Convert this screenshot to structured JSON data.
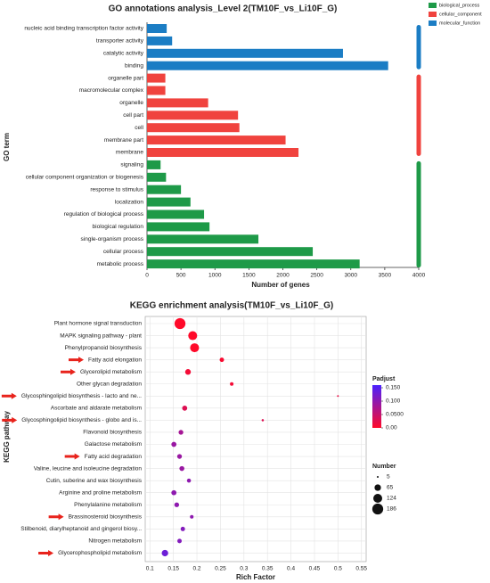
{
  "chart_data": [
    {
      "type": "barh",
      "title": "GO annotations analysis_Level 2(TM10F_vs_Li10F_G)",
      "xlabel": "Number of genes",
      "ylabel": "GO term",
      "xlim": [
        0,
        4000
      ],
      "xticks": [
        0,
        500,
        1000,
        1500,
        2000,
        2500,
        3000,
        3500,
        4000
      ],
      "series": [
        {
          "name": "biological_process",
          "color": "#1e9a48",
          "categories": [
            "signaling",
            "cellular component organization or biogenesis",
            "response to stimulus",
            "localization",
            "regulation of biological process",
            "biological regulation",
            "single-organism process",
            "cellular process",
            "metabolic process"
          ],
          "values": [
            200,
            280,
            500,
            640,
            840,
            920,
            1640,
            2440,
            3130
          ]
        },
        {
          "name": "cellular_component",
          "color": "#f0433e",
          "categories": [
            "organelle part",
            "macromolecular complex",
            "organelle",
            "cell part",
            "cell",
            "membrane part",
            "membrane"
          ],
          "values": [
            270,
            270,
            900,
            1340,
            1360,
            2040,
            2230
          ]
        },
        {
          "name": "molecular_function",
          "color": "#1b7dc4",
          "categories": [
            "nucleic acid binding transcription factor activity",
            "transporter activity",
            "catalytic activity",
            "binding"
          ],
          "values": [
            290,
            370,
            2885,
            3550
          ]
        }
      ]
    },
    {
      "type": "bubble",
      "title": "KEGG enrichment analysis(TM10F_vs_Li10F_G)",
      "xlabel": "Rich Factor",
      "ylabel": "KEGG pathway",
      "xlim": [
        0.09,
        0.56
      ],
      "xticks": [
        0.1,
        0.15,
        0.2,
        0.25,
        0.3,
        0.35,
        0.4,
        0.45,
        0.5,
        0.55
      ],
      "grid": true,
      "categories": [
        "Plant hormone signal transduction",
        "MAPK signaling pathway - plant",
        "Phenylpropanoid biosynthesis",
        "Fatty acid elongation",
        "Glycerolipid metabolism",
        "Other glycan degradation",
        "Glycosphingolipid biosynthesis - lacto and ne...",
        "Ascorbate and aldarate metabolism",
        "Glycosphingolipid biosynthesis - globo and is...",
        "Flavonoid biosynthesis",
        "Galactose metabolism",
        "Fatty acid degradation",
        "Valine, leucine and isoleucine degradation",
        "Cutin, suberine and wax biosynthesis",
        "Arginine and proline metabolism",
        "Phenylalanine metabolism",
        "Brassinosteroid biosynthesis",
        "Stilbenoid, diarylheptanoid and gingerol biosy...",
        "Nitrogen metabolism",
        "Glycerophospholipid metabolism"
      ],
      "marked": [
        false,
        false,
        false,
        true,
        true,
        false,
        true,
        false,
        true,
        false,
        false,
        true,
        false,
        false,
        false,
        false,
        true,
        false,
        false,
        true
      ],
      "x": [
        0.164,
        0.191,
        0.195,
        0.253,
        0.181,
        0.274,
        0.5,
        0.174,
        0.34,
        0.166,
        0.151,
        0.163,
        0.168,
        0.183,
        0.151,
        0.157,
        0.189,
        0.17,
        0.163,
        0.132
      ],
      "sizes": [
        186,
        124,
        124,
        30,
        50,
        20,
        5,
        40,
        8,
        35,
        40,
        35,
        38,
        25,
        40,
        35,
        20,
        30,
        30,
        65
      ],
      "padj": [
        0.0,
        0.0,
        0.0,
        0.005,
        0.01,
        0.01,
        0.02,
        0.03,
        0.03,
        0.08,
        0.09,
        0.09,
        0.09,
        0.1,
        0.1,
        0.1,
        0.1,
        0.11,
        0.11,
        0.13
      ],
      "color_title": "Padjust",
      "color_lim": [
        0,
        0.16
      ],
      "color_low": "#ff0a2a",
      "color_high": "#4a22ff",
      "color_ticks": [
        {
          "value": 0.15,
          "label": "0.150"
        },
        {
          "value": 0.1,
          "label": "0.100"
        },
        {
          "value": 0.05,
          "label": "0.0500"
        },
        {
          "value": 0,
          "label": "0.00"
        }
      ],
      "size_title": "Number",
      "size_ticks": [
        5,
        65,
        124,
        186
      ]
    }
  ]
}
